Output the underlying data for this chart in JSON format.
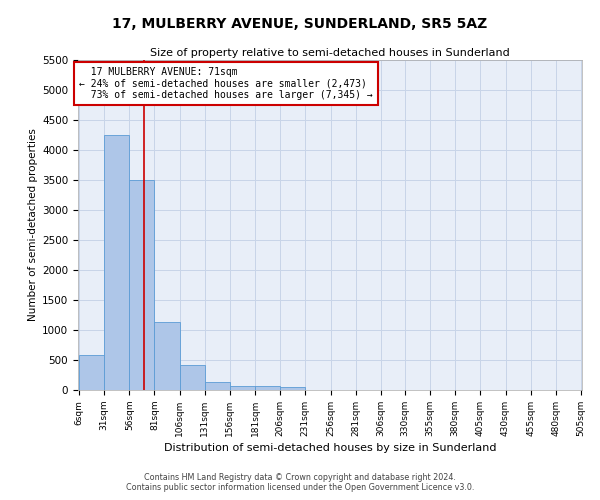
{
  "title": "17, MULBERRY AVENUE, SUNDERLAND, SR5 5AZ",
  "subtitle": "Size of property relative to semi-detached houses in Sunderland",
  "xlabel": "Distribution of semi-detached houses by size in Sunderland",
  "ylabel": "Number of semi-detached properties",
  "footer1": "Contains HM Land Registry data © Crown copyright and database right 2024.",
  "footer2": "Contains public sector information licensed under the Open Government Licence v3.0.",
  "property_size": 71,
  "property_label": "17 MULBERRY AVENUE: 71sqm",
  "pct_smaller": 24,
  "n_smaller": 2473,
  "pct_larger": 73,
  "n_larger": 7345,
  "bin_edges": [
    6,
    31,
    56,
    81,
    106,
    131,
    156,
    181,
    206,
    231,
    256,
    281,
    306,
    330,
    355,
    380,
    405,
    430,
    455,
    480,
    505
  ],
  "bar_heights": [
    580,
    4250,
    3500,
    1130,
    420,
    130,
    70,
    60,
    50,
    0,
    0,
    0,
    0,
    0,
    0,
    0,
    0,
    0,
    0,
    0
  ],
  "bar_color": "#aec6e8",
  "bar_edge_color": "#5b9bd5",
  "grid_color": "#c8d4e8",
  "background_color": "#e8eef8",
  "annotation_box_color": "#cc0000",
  "vline_color": "#cc0000",
  "ylim": [
    0,
    5500
  ],
  "yticks": [
    0,
    500,
    1000,
    1500,
    2000,
    2500,
    3000,
    3500,
    4000,
    4500,
    5000,
    5500
  ]
}
